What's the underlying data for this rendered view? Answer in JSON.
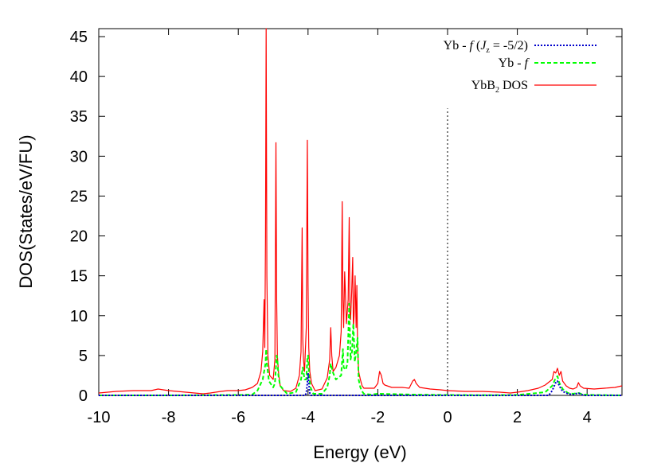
{
  "chart_data": {
    "type": "line",
    "xlabel": "Energy (eV)",
    "ylabel": "DOS(States/eV/FU)",
    "xlim": [
      -10,
      5
    ],
    "ylim": [
      0,
      46
    ],
    "x_ticks": [
      "-10",
      "-8",
      "-6",
      "-4",
      "-2",
      "0",
      "2",
      "4"
    ],
    "y_ticks": [
      "0",
      "5",
      "10",
      "15",
      "20",
      "25",
      "30",
      "35",
      "40",
      "45"
    ],
    "fermi_level": {
      "x": 0,
      "y_top": 36
    },
    "legend": {
      "position": "top-right",
      "entries": [
        {
          "prefix": "Yb - ",
          "italic": "f",
          "suffix_open": " (",
          "jz": "J",
          "jz_sub": "z",
          "suffix": " = -5/2)",
          "series": "yb_f_jz"
        },
        {
          "prefix": "Yb - ",
          "italic": "f",
          "series": "yb_f"
        },
        {
          "prefix": "YbB",
          "sub": "2",
          "suffix": " DOS",
          "series": "total"
        }
      ]
    },
    "series": [
      {
        "id": "total",
        "name": "YbB2 DOS",
        "color": "#ff0000",
        "dash": "solid",
        "x": [
          -10,
          -9.5,
          -9,
          -8.5,
          -8.3,
          -8,
          -7.5,
          -7,
          -6.8,
          -6.5,
          -6.3,
          -6,
          -5.8,
          -5.6,
          -5.45,
          -5.35,
          -5.3,
          -5.26,
          -5.24,
          -5.22,
          -5.2,
          -5.18,
          -5.15,
          -5.1,
          -5.0,
          -4.95,
          -4.92,
          -4.9,
          -4.88,
          -4.85,
          -4.8,
          -4.7,
          -4.5,
          -4.35,
          -4.25,
          -4.2,
          -4.17,
          -4.15,
          -4.13,
          -4.1,
          -4.05,
          -4.02,
          -4.0,
          -3.98,
          -3.95,
          -3.9,
          -3.8,
          -3.6,
          -3.45,
          -3.38,
          -3.35,
          -3.32,
          -3.28,
          -3.2,
          -3.1,
          -3.05,
          -3.02,
          -3.0,
          -2.98,
          -2.95,
          -2.9,
          -2.85,
          -2.82,
          -2.8,
          -2.78,
          -2.75,
          -2.72,
          -2.7,
          -2.68,
          -2.65,
          -2.62,
          -2.6,
          -2.58,
          -2.55,
          -2.5,
          -2.45,
          -2.4,
          -2.3,
          -2.1,
          -2.0,
          -1.95,
          -1.9,
          -1.85,
          -1.8,
          -1.6,
          -1.3,
          -1.1,
          -1.0,
          -0.95,
          -0.9,
          -0.8,
          -0.5,
          -0.2,
          0,
          0.5,
          1.0,
          1.5,
          1.8,
          2.0,
          2.3,
          2.6,
          2.8,
          3.0,
          3.05,
          3.1,
          3.15,
          3.2,
          3.25,
          3.3,
          3.4,
          3.5,
          3.6,
          3.7,
          3.75,
          3.8,
          3.9,
          4.2,
          4.5,
          4.8,
          5.0
        ],
        "y": [
          0.3,
          0.5,
          0.6,
          0.6,
          0.8,
          0.6,
          0.4,
          0.2,
          0.3,
          0.5,
          0.6,
          0.6,
          0.7,
          1.0,
          1.5,
          3.0,
          5.5,
          12.0,
          6.0,
          20.0,
          46.0,
          15.0,
          5.0,
          2.5,
          2.0,
          4.5,
          31.7,
          12.0,
          5.0,
          3.0,
          1.2,
          0.6,
          0.5,
          0.9,
          2.5,
          5.5,
          21.0,
          7.0,
          4.5,
          3.0,
          8.5,
          32.0,
          14.0,
          6.0,
          3.0,
          1.5,
          0.6,
          0.8,
          2.2,
          4.5,
          8.5,
          5.0,
          3.0,
          3.5,
          5.0,
          8.0,
          24.3,
          12.0,
          8.5,
          15.5,
          9.0,
          12.0,
          22.3,
          10.0,
          9.5,
          13.0,
          17.3,
          8.5,
          10.0,
          15.0,
          8.5,
          13.8,
          6.0,
          3.0,
          2.0,
          1.2,
          0.9,
          0.9,
          0.9,
          1.5,
          3.0,
          2.5,
          1.5,
          1.3,
          1.0,
          1.0,
          0.9,
          1.8,
          2.0,
          1.5,
          1.0,
          0.8,
          0.7,
          0.6,
          0.5,
          0.5,
          0.4,
          0.3,
          0.4,
          0.6,
          0.9,
          1.3,
          2.0,
          3.0,
          2.8,
          3.4,
          2.5,
          3.0,
          1.8,
          1.2,
          0.9,
          0.8,
          1.0,
          1.6,
          1.2,
          0.9,
          0.8,
          0.9,
          1.0,
          1.2
        ]
      },
      {
        "id": "yb_f",
        "name": "Yb - f",
        "color": "#00ff00",
        "dash": "dashed",
        "x": [
          -10,
          -8,
          -6,
          -5.6,
          -5.45,
          -5.3,
          -5.22,
          -5.2,
          -5.18,
          -5.12,
          -5.0,
          -4.95,
          -4.9,
          -4.88,
          -4.85,
          -4.8,
          -4.6,
          -4.35,
          -4.2,
          -4.15,
          -4.1,
          -4.05,
          -4.02,
          -4.0,
          -3.97,
          -3.93,
          -3.85,
          -3.6,
          -3.45,
          -3.38,
          -3.35,
          -3.3,
          -3.2,
          -3.05,
          -3.0,
          -2.98,
          -2.92,
          -2.87,
          -2.82,
          -2.78,
          -2.74,
          -2.7,
          -2.66,
          -2.62,
          -2.58,
          -2.55,
          -2.5,
          -2.45,
          -2.4,
          -2.2,
          -2.0,
          -1.0,
          0,
          1.0,
          2.0,
          2.8,
          3.0,
          3.1,
          3.15,
          3.2,
          3.3,
          3.45,
          3.6,
          3.75,
          3.9,
          4.2,
          5.0
        ],
        "y": [
          0,
          0,
          0.05,
          0.1,
          0.6,
          2.0,
          4.0,
          5.8,
          4.0,
          1.8,
          1.0,
          1.5,
          5.0,
          4.5,
          2.5,
          1.2,
          0.2,
          0.4,
          2.0,
          3.5,
          2.0,
          2.0,
          4.5,
          5.0,
          2.5,
          1.0,
          0.2,
          0.2,
          1.0,
          2.5,
          4.0,
          3.0,
          2.0,
          2.5,
          5.8,
          3.5,
          3.2,
          4.0,
          11.5,
          4.5,
          5.5,
          9.0,
          4.2,
          5.5,
          7.2,
          2.0,
          1.0,
          0.5,
          0.2,
          0.1,
          0.2,
          0.1,
          0.05,
          0.02,
          0.05,
          0.4,
          1.2,
          2.2,
          2.4,
          1.6,
          0.8,
          0.3,
          0.2,
          0.3,
          0.1,
          0.05,
          0
        ]
      },
      {
        "id": "yb_f_jz",
        "name": "Yb - f (Jz = -5/2)",
        "color": "#0000cc",
        "dash": "dotted",
        "x": [
          -10,
          -4.08,
          -4.05,
          -4.02,
          -4.0,
          -3.98,
          -3.95,
          -3.92,
          2.9,
          3.0,
          3.1,
          3.15,
          3.2,
          3.3,
          3.45,
          3.6,
          3.75,
          3.9,
          5.0
        ],
        "y": [
          0,
          0,
          0.3,
          1.5,
          2.8,
          1.5,
          0.3,
          0,
          0,
          0.6,
          1.6,
          1.8,
          1.2,
          0.5,
          0.2,
          0.1,
          0.3,
          0,
          0
        ]
      }
    ]
  }
}
